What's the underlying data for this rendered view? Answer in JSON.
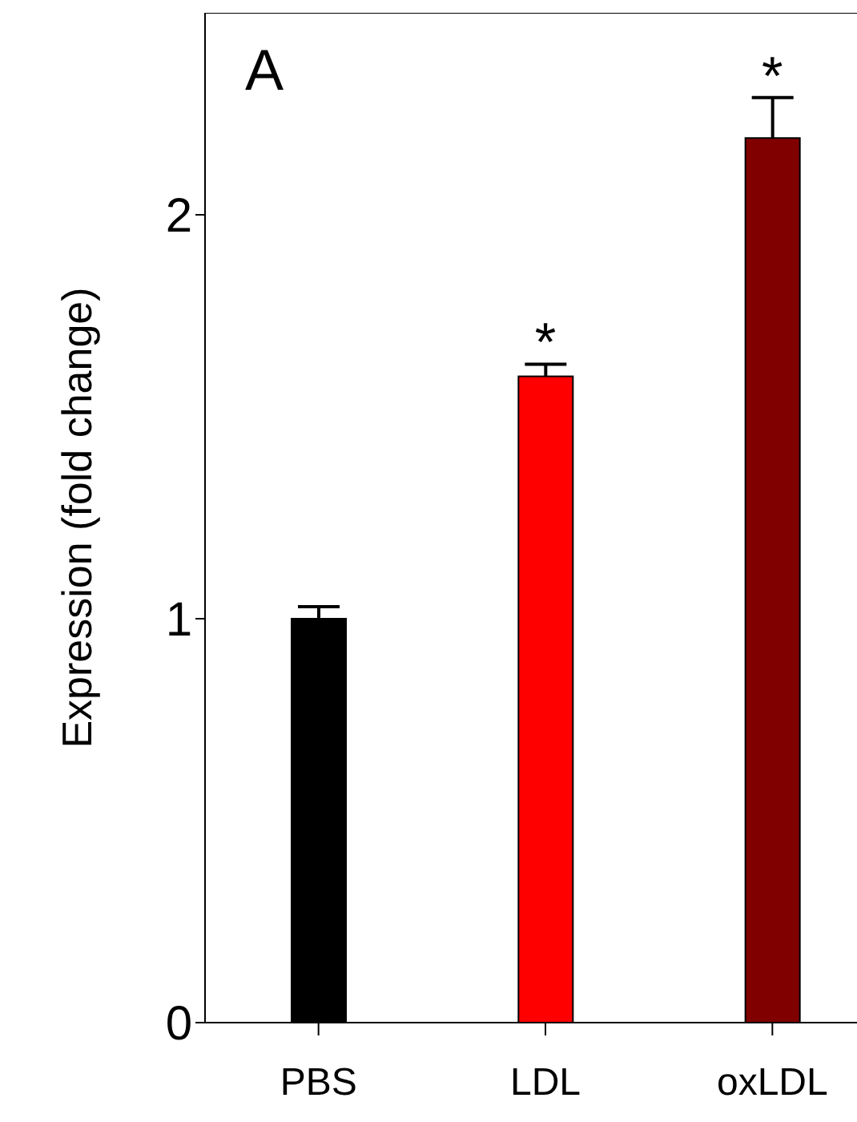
{
  "chart_data": {
    "type": "bar",
    "ylabel": "Expression (fold change)",
    "categories": [
      "PBS",
      "LDL",
      "oxLDL"
    ],
    "values": [
      1.0,
      1.6,
      2.19
    ],
    "colors": [
      "#000000",
      "#ff0000",
      "#800000"
    ],
    "errors": [
      [
        1.0,
        1.03
      ],
      [
        1.6,
        1.63
      ],
      [
        2.19,
        2.29
      ]
    ],
    "ylim": [
      0,
      2.5
    ],
    "yticks": [
      0,
      1,
      2
    ],
    "grid": false,
    "annotations": [
      "A",
      {
        "text": "*",
        "x": "LDL",
        "y": 1.63
      },
      {
        "text": "*",
        "x": "oxLDL",
        "y": 2.29
      }
    ]
  }
}
